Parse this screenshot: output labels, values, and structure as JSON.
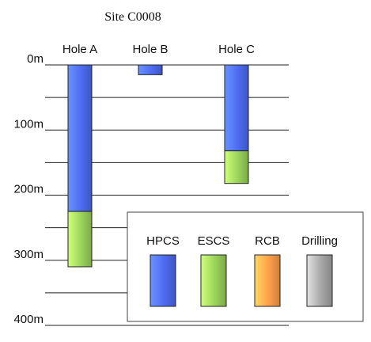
{
  "chart_data": {
    "type": "bar",
    "title": "Site C0008",
    "y_axis": {
      "unit": "m",
      "min": 0,
      "max": 400,
      "inverted": true,
      "tick_labels": [
        "0m",
        "100m",
        "200m",
        "300m",
        "400m"
      ],
      "tick_values": [
        0,
        100,
        200,
        300,
        400
      ],
      "gridline_step": 50
    },
    "categories": [
      "Hole A",
      "Hole B",
      "Hole C"
    ],
    "series": [
      {
        "name": "HPCS",
        "color": "#4e6cf2",
        "intervals": [
          [
            0,
            225
          ],
          [
            0,
            15
          ],
          [
            0,
            132
          ]
        ]
      },
      {
        "name": "ESCS",
        "color": "#9bd45a",
        "intervals": [
          [
            225,
            310
          ],
          null,
          [
            132,
            182
          ]
        ]
      },
      {
        "name": "RCB",
        "color": "#ffa04a",
        "intervals": [
          null,
          null,
          null
        ]
      },
      {
        "name": "Drilling",
        "color": "#a8a8a8",
        "intervals": [
          null,
          null,
          null
        ]
      }
    ],
    "legend": {
      "position": "bottom-right"
    },
    "grid": true
  }
}
